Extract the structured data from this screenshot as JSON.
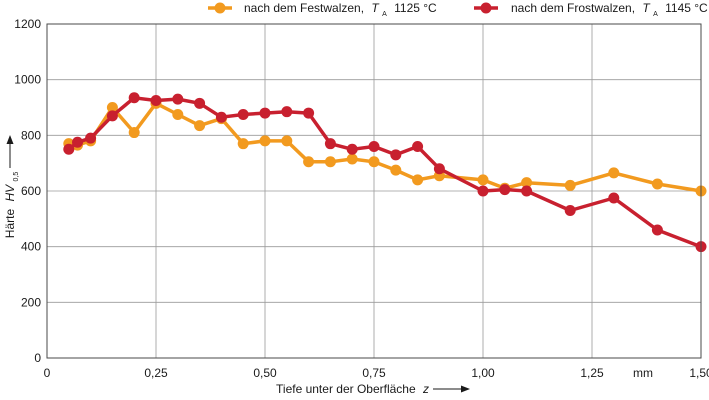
{
  "chart_data": {
    "type": "line",
    "x_unit": "mm",
    "xlabel": {
      "text": "Tiefe unter der Oberfläche",
      "var": "z"
    },
    "ylabel": {
      "text": "Härte",
      "var": "HV",
      "sub": "0,5"
    },
    "xlim": [
      0,
      1.5
    ],
    "ylim": [
      0,
      1200
    ],
    "x_tick_labels": [
      "0",
      "0,25",
      "0,50",
      "0,75",
      "1,00",
      "1,25",
      "1,50"
    ],
    "y_tick_labels": [
      "0",
      "200",
      "400",
      "600",
      "800",
      "1000",
      "1200"
    ],
    "grid": true,
    "legend_position": "top",
    "series": [
      {
        "name": "nach dem Festwalzen, T_A 1125 °C",
        "legend": {
          "prefix": "nach dem Festwalzen,",
          "var": "T",
          "sub": "A",
          "suffix": "1125 °C"
        },
        "color": "#f29a1f",
        "x": [
          0.05,
          0.07,
          0.1,
          0.15,
          0.2,
          0.25,
          0.3,
          0.35,
          0.4,
          0.45,
          0.5,
          0.55,
          0.6,
          0.65,
          0.7,
          0.75,
          0.8,
          0.85,
          0.9,
          1.0,
          1.05,
          1.1,
          1.2,
          1.3,
          1.4,
          1.5
        ],
        "y": [
          770,
          765,
          780,
          900,
          810,
          915,
          875,
          835,
          860,
          770,
          780,
          780,
          705,
          705,
          715,
          705,
          675,
          640,
          655,
          640,
          610,
          630,
          620,
          665,
          625,
          600
        ]
      },
      {
        "name": "nach dem Frostwalzen, T_A 1145 °C",
        "legend": {
          "prefix": "nach dem Frostwalzen,",
          "var": "T",
          "sub": "A",
          "suffix": "1145 °C"
        },
        "color": "#c8202f",
        "x": [
          0.05,
          0.07,
          0.1,
          0.15,
          0.2,
          0.25,
          0.3,
          0.35,
          0.4,
          0.45,
          0.5,
          0.55,
          0.6,
          0.65,
          0.7,
          0.75,
          0.8,
          0.85,
          0.9,
          1.0,
          1.05,
          1.1,
          1.2,
          1.3,
          1.4,
          1.5
        ],
        "y": [
          750,
          775,
          790,
          870,
          935,
          925,
          930,
          915,
          865,
          875,
          880,
          885,
          880,
          770,
          750,
          760,
          730,
          760,
          680,
          600,
          605,
          600,
          530,
          575,
          460,
          400
        ]
      }
    ]
  }
}
